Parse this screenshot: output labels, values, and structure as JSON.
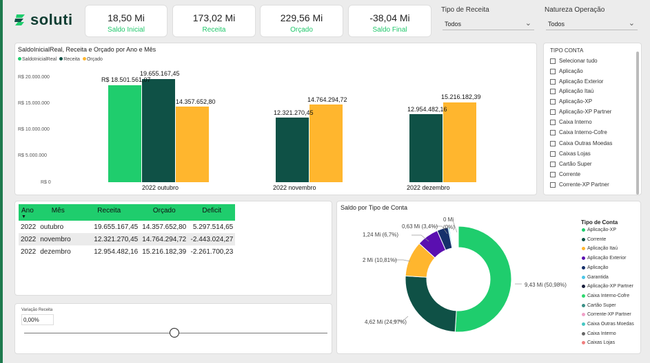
{
  "brand": {
    "name": "soluti"
  },
  "kpis": [
    {
      "value": "18,50 Mi",
      "label": "Saldo Inicial"
    },
    {
      "value": "173,02 Mi",
      "label": "Receita"
    },
    {
      "value": "229,56 Mi",
      "label": "Orçado"
    },
    {
      "value": "-38,04 Mi",
      "label": "Saldo Final"
    }
  ],
  "filters": {
    "tipo_receita": {
      "label": "Tipo de Receita",
      "value": "Todos"
    },
    "natureza": {
      "label": "Natureza Operação",
      "value": "Todos"
    }
  },
  "colors": {
    "saldo": "#1fcd6d",
    "receita": "#0f5146",
    "orcado": "#ffb62e",
    "accent_green": "#1fc76a"
  },
  "bar_chart": {
    "title": "SaldoInicialReal, Receita e Orçado por Ano e Mês",
    "legend": [
      "SaldoInicialReal",
      "Receita",
      "Orçado"
    ],
    "y_ticks": [
      "R$ 20.000.000",
      "R$ 15.000.000",
      "R$ 10.000.000",
      "R$ 5.000.000",
      "R$ 0"
    ],
    "bar_labels": {
      "out_saldo": "R$ 18.501.561,07",
      "out_receita": "19.655.167,45",
      "out_orcado": "14.357.652,80",
      "nov_receita": "12.321.270,45",
      "nov_orcado": "14.764.294,72",
      "dez_receita": "12.954.482,16",
      "dez_orcado": "15.216.182,39"
    }
  },
  "chart_data": {
    "type": "bar",
    "title": "SaldoInicialReal, Receita e Orçado por Ano e Mês",
    "categories": [
      "2022 outubro",
      "2022 novembro",
      "2022 dezembro"
    ],
    "series": [
      {
        "name": "SaldoInicialReal",
        "values": [
          18501561.07,
          null,
          null
        ]
      },
      {
        "name": "Receita",
        "values": [
          19655167.45,
          12321270.45,
          12954482.16
        ]
      },
      {
        "name": "Orçado",
        "values": [
          14357652.8,
          14764294.72,
          15216182.39
        ]
      }
    ],
    "ylim": [
      0,
      20000000
    ]
  },
  "slicer": {
    "title": "TIPO CONTA",
    "items": [
      "Selecionar tudo",
      "Aplicação",
      "Aplicação Exterior",
      "Aplicação Itaú",
      "Aplicação-XP",
      "Aplicação-XP Partner",
      "Caixa Interno",
      "Caixa Interno-Cofre",
      "Caixa Outras Moedas",
      "Caixas Lojas",
      "Cartão Super",
      "Corrente",
      "Corrente-XP Partner"
    ]
  },
  "table": {
    "headers": [
      "Ano",
      "Mês",
      "Receita",
      "Orçado",
      "Deficit"
    ],
    "rows": [
      [
        "2022",
        "outubro",
        "19.655.167,45",
        "14.357.652,80",
        "5.297.514,65"
      ],
      [
        "2022",
        "novembro",
        "12.321.270,45",
        "14.764.294,72",
        "-2.443.024,27"
      ],
      [
        "2022",
        "dezembro",
        "12.954.482,16",
        "15.216.182,39",
        "-2.261.700,23"
      ]
    ]
  },
  "slider": {
    "title": "Variação Receita",
    "value": "0,00%"
  },
  "donut": {
    "title": "Saldo por Tipo de Conta",
    "legend_title": "Tipo de Conta",
    "labels": {
      "aplicacao_xp": "9,43 Mi (50,98%)",
      "corrente": "4,62 Mi (24,97%)",
      "itau": "2 Mi (10,81%)",
      "exterior": "1,24 Mi (6,7%)",
      "aplicacao": "0,63 Mi (3,4%)",
      "garantida_a": "0 Mi",
      "garantida_b": "(0%)"
    },
    "legend": [
      {
        "name": "Aplicação-XP",
        "color": "#1fcd6d"
      },
      {
        "name": "Corrente",
        "color": "#0f5146"
      },
      {
        "name": "Aplicação Itaú",
        "color": "#ffb62e"
      },
      {
        "name": "Aplicação Exterior",
        "color": "#5a0fb0"
      },
      {
        "name": "Aplicação",
        "color": "#15306b"
      },
      {
        "name": "Garantida",
        "color": "#4cc7e8"
      },
      {
        "name": "Aplicação-XP Partner",
        "color": "#1a1f3d"
      },
      {
        "name": "Caixa Interno-Cofre",
        "color": "#2ed86e"
      },
      {
        "name": "Cartão Super",
        "color": "#3a8f86"
      },
      {
        "name": "Corrente-XP Partner",
        "color": "#f0a0c8"
      },
      {
        "name": "Caixa Outras Moedas",
        "color": "#46c7c3"
      },
      {
        "name": "Caixa Interno",
        "color": "#666666"
      },
      {
        "name": "Caixas Lojas",
        "color": "#f07f7f"
      }
    ],
    "chart_data": {
      "type": "pie",
      "slices": [
        {
          "name": "Aplicação-XP",
          "value": 9.43,
          "pct": 50.98
        },
        {
          "name": "Corrente",
          "value": 4.62,
          "pct": 24.97
        },
        {
          "name": "Aplicação Itaú",
          "value": 2.0,
          "pct": 10.81
        },
        {
          "name": "Aplicação Exterior",
          "value": 1.24,
          "pct": 6.7
        },
        {
          "name": "Aplicação",
          "value": 0.63,
          "pct": 3.4
        },
        {
          "name": "Garantida",
          "value": 0.0,
          "pct": 0.0
        }
      ]
    }
  }
}
